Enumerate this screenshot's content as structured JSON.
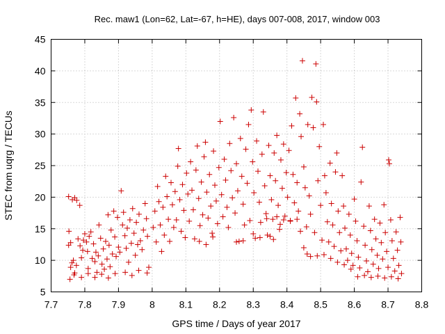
{
  "chart_data": {
    "type": "scatter",
    "title": "Rec. maw1 (Lon=62, Lat=-67, h=HE), days 007-008, 2017, window 003",
    "xlabel": "GPS time / Days of year 2017",
    "ylabel": "STEC from uqrg / TECUs",
    "xlim": [
      7.7,
      8.8
    ],
    "ylim": [
      5,
      45
    ],
    "x_ticks": [
      "7.7",
      "7.8",
      "7.9",
      "8",
      "8.1",
      "8.2",
      "8.3",
      "8.4",
      "8.5",
      "8.6",
      "8.7",
      "8.8"
    ],
    "y_ticks": [
      "5",
      "10",
      "15",
      "20",
      "25",
      "30",
      "35",
      "40",
      "45"
    ],
    "grid": true,
    "marker": "plus",
    "colors": {
      "points": "#cc0000"
    },
    "series": [
      {
        "points": [
          [
            7.752,
            20.1
          ],
          [
            7.763,
            19.6
          ],
          [
            7.77,
            19.9
          ],
          [
            7.776,
            19.5
          ],
          [
            7.785,
            18.7
          ],
          [
            7.753,
            14.6
          ],
          [
            7.752,
            12.4
          ],
          [
            7.758,
            12.8
          ],
          [
            7.762,
            9.6
          ],
          [
            7.758,
            8.9
          ],
          [
            7.766,
            10.0
          ],
          [
            7.77,
            8.0
          ],
          [
            7.775,
            9.2
          ],
          [
            7.78,
            13.4
          ],
          [
            7.786,
            12.3
          ],
          [
            7.79,
            10.4
          ],
          [
            7.794,
            11.6
          ],
          [
            7.796,
            13.2
          ],
          [
            7.8,
            14.2
          ],
          [
            7.805,
            12.9
          ],
          [
            7.808,
            11.4
          ],
          [
            7.81,
            8.7
          ],
          [
            7.813,
            13.8
          ],
          [
            7.818,
            14.5
          ],
          [
            7.822,
            10.3
          ],
          [
            7.826,
            12.6
          ],
          [
            7.83,
            9.8
          ],
          [
            7.833,
            11.3
          ],
          [
            7.836,
            8.1
          ],
          [
            7.84,
            10.7
          ],
          [
            7.842,
            15.6
          ],
          [
            7.847,
            13.5
          ],
          [
            7.851,
            9.4
          ],
          [
            7.855,
            11.8
          ],
          [
            7.858,
            8.6
          ],
          [
            7.862,
            13.0
          ],
          [
            7.866,
            10.2
          ],
          [
            7.869,
            17.2
          ],
          [
            7.872,
            12.4
          ],
          [
            7.875,
            9.0
          ],
          [
            7.878,
            14.8
          ],
          [
            7.882,
            11.0
          ],
          [
            7.886,
            17.8
          ],
          [
            7.889,
            13.7
          ],
          [
            7.893,
            10.6
          ],
          [
            7.897,
            16.8
          ],
          [
            7.9,
            12.1
          ],
          [
            7.904,
            11.3
          ],
          [
            7.908,
            21.0
          ],
          [
            7.912,
            15.6
          ],
          [
            7.915,
            17.6
          ],
          [
            7.919,
            13.9
          ],
          [
            7.923,
            11.9
          ],
          [
            7.926,
            15.1
          ],
          [
            7.93,
            9.7
          ],
          [
            7.934,
            16.4
          ],
          [
            7.938,
            12.7
          ],
          [
            7.942,
            18.2
          ],
          [
            7.946,
            14.3
          ],
          [
            7.95,
            10.8
          ],
          [
            7.953,
            16.0
          ],
          [
            7.957,
            12.5
          ],
          [
            7.961,
            17.3
          ],
          [
            7.965,
            13.1
          ],
          [
            7.97,
            11.7
          ],
          [
            7.974,
            14.8
          ],
          [
            7.979,
            19.0
          ],
          [
            7.983,
            16.6
          ],
          [
            7.986,
            13.8
          ],
          [
            7.99,
            8.9
          ],
          [
            7.756,
            7.0
          ],
          [
            7.768,
            7.7
          ],
          [
            7.79,
            7.3
          ],
          [
            7.81,
            7.9
          ],
          [
            7.83,
            7.3
          ],
          [
            7.85,
            7.8
          ],
          [
            7.87,
            7.2
          ],
          [
            7.89,
            7.9
          ],
          [
            7.92,
            8.1
          ],
          [
            7.94,
            7.6
          ],
          [
            7.96,
            8.4
          ],
          [
            7.985,
            8.0
          ],
          [
            8.003,
            15.2
          ],
          [
            8.008,
            17.8
          ],
          [
            8.012,
            12.9
          ],
          [
            8.016,
            21.7
          ],
          [
            8.02,
            19.3
          ],
          [
            8.024,
            15.6
          ],
          [
            8.028,
            11.4
          ],
          [
            8.032,
            18.4
          ],
          [
            8.036,
            14.0
          ],
          [
            8.04,
            23.3
          ],
          [
            8.044,
            20.1
          ],
          [
            8.048,
            16.5
          ],
          [
            8.052,
            13.0
          ],
          [
            8.056,
            22.3
          ],
          [
            8.06,
            18.8
          ],
          [
            8.064,
            15.2
          ],
          [
            8.068,
            20.9
          ],
          [
            8.072,
            16.4
          ],
          [
            8.076,
            24.9
          ],
          [
            8.078,
            27.7
          ],
          [
            8.082,
            19.6
          ],
          [
            8.086,
            14.6
          ],
          [
            8.09,
            22.0
          ],
          [
            8.094,
            17.9
          ],
          [
            8.098,
            13.6
          ],
          [
            8.102,
            23.8
          ],
          [
            8.106,
            20.5
          ],
          [
            8.11,
            16.2
          ],
          [
            8.114,
            25.6
          ],
          [
            8.118,
            21.1
          ],
          [
            8.122,
            18.0
          ],
          [
            8.126,
            13.4
          ],
          [
            8.13,
            24.3
          ],
          [
            8.134,
            28.1
          ],
          [
            8.138,
            19.8
          ],
          [
            8.142,
            15.5
          ],
          [
            8.146,
            22.4
          ],
          [
            8.15,
            17.2
          ],
          [
            8.154,
            26.4
          ],
          [
            8.158,
            28.7
          ],
          [
            8.162,
            20.8
          ],
          [
            8.166,
            16.7
          ],
          [
            8.17,
            23.6
          ],
          [
            8.174,
            18.6
          ],
          [
            8.178,
            14.3
          ],
          [
            8.182,
            27.3
          ],
          [
            8.186,
            21.9
          ],
          [
            8.19,
            19.4
          ],
          [
            8.194,
            15.8
          ],
          [
            8.198,
            24.7
          ],
          [
            8.202,
            32.0
          ],
          [
            8.206,
            20.4
          ],
          [
            8.21,
            16.9
          ],
          [
            8.214,
            26.0
          ],
          [
            8.218,
            22.7
          ],
          [
            8.222,
            18.4
          ],
          [
            8.226,
            15.2
          ],
          [
            8.23,
            28.5
          ],
          [
            8.234,
            24.2
          ],
          [
            8.238,
            19.9
          ],
          [
            8.242,
            32.6
          ],
          [
            8.246,
            17.5
          ],
          [
            8.25,
            25.3
          ],
          [
            8.254,
            21.0
          ],
          [
            8.258,
            13.0
          ],
          [
            8.262,
            29.3
          ],
          [
            8.266,
            23.3
          ],
          [
            8.27,
            18.9
          ],
          [
            8.274,
            15.6
          ],
          [
            8.278,
            27.6
          ],
          [
            8.282,
            22.2
          ],
          [
            8.286,
            31.5
          ],
          [
            8.29,
            16.3
          ],
          [
            8.294,
            33.8
          ],
          [
            8.298,
            25.6
          ],
          [
            8.302,
            20.7
          ],
          [
            8.306,
            13.5
          ],
          [
            8.31,
            28.9
          ],
          [
            8.314,
            24.1
          ],
          [
            8.318,
            19.2
          ],
          [
            8.322,
            16.0
          ],
          [
            8.326,
            26.8
          ],
          [
            8.33,
            33.5
          ],
          [
            8.334,
            21.8
          ],
          [
            8.338,
            17.4
          ],
          [
            8.342,
            14.0
          ],
          [
            8.346,
            28.2
          ],
          [
            8.35,
            23.4
          ],
          [
            8.354,
            19.6
          ],
          [
            8.358,
            16.5
          ],
          [
            8.362,
            27.0
          ],
          [
            8.366,
            22.6
          ],
          [
            8.37,
            29.8
          ],
          [
            8.374,
            18.7
          ],
          [
            8.378,
            14.9
          ],
          [
            8.382,
            25.9
          ],
          [
            8.386,
            21.4
          ],
          [
            8.39,
            28.4
          ],
          [
            8.394,
            17.0
          ],
          [
            8.398,
            23.9
          ],
          [
            8.402,
            20.0
          ],
          [
            8.406,
            27.4
          ],
          [
            8.41,
            16.3
          ],
          [
            8.414,
            31.3
          ],
          [
            8.418,
            23.6
          ],
          [
            8.422,
            19.1
          ],
          [
            8.426,
            35.7
          ],
          [
            8.43,
            22.3
          ],
          [
            8.434,
            17.8
          ],
          [
            8.438,
            33.2
          ],
          [
            8.442,
            29.6
          ],
          [
            8.446,
            41.6
          ],
          [
            8.45,
            24.8
          ],
          [
            8.454,
            21.5
          ],
          [
            8.458,
            15.3
          ],
          [
            8.462,
            31.5
          ],
          [
            8.466,
            20.2
          ],
          [
            8.47,
            17.3
          ],
          [
            8.474,
            35.8
          ],
          [
            8.478,
            31.0
          ],
          [
            8.482,
            14.4
          ],
          [
            8.486,
            41.1
          ],
          [
            8.488,
            35.1
          ],
          [
            8.492,
            22.6
          ],
          [
            8.496,
            28.0
          ],
          [
            8.5,
            18.7
          ],
          [
            8.504,
            13.2
          ],
          [
            8.508,
            31.5
          ],
          [
            8.512,
            23.4
          ],
          [
            8.516,
            20.7
          ],
          [
            8.52,
            16.1
          ],
          [
            8.524,
            12.9
          ],
          [
            8.528,
            25.4
          ],
          [
            8.532,
            19.0
          ],
          [
            8.536,
            15.6
          ],
          [
            8.54,
            12.2
          ],
          [
            8.544,
            24.0
          ],
          [
            8.548,
            27.0
          ],
          [
            8.552,
            17.8
          ],
          [
            8.556,
            14.4
          ],
          [
            8.56,
            11.5
          ],
          [
            8.564,
            23.4
          ],
          [
            8.568,
            18.6
          ],
          [
            8.572,
            15.1
          ],
          [
            8.576,
            11.8
          ],
          [
            8.58,
            10.0
          ],
          [
            8.584,
            17.3
          ],
          [
            8.588,
            14.0
          ],
          [
            8.592,
            11.1
          ],
          [
            8.596,
            9.2
          ],
          [
            8.6,
            19.7
          ],
          [
            8.604,
            16.2
          ],
          [
            8.608,
            13.1
          ],
          [
            8.612,
            10.5
          ],
          [
            8.616,
            8.8
          ],
          [
            8.62,
            22.4
          ],
          [
            8.624,
            27.9
          ],
          [
            8.628,
            15.4
          ],
          [
            8.632,
            12.4
          ],
          [
            8.636,
            9.9
          ],
          [
            8.64,
            8.2
          ],
          [
            8.644,
            18.6
          ],
          [
            8.648,
            14.7
          ],
          [
            8.652,
            11.7
          ],
          [
            8.656,
            9.4
          ],
          [
            8.66,
            16.5
          ],
          [
            8.664,
            13.4
          ],
          [
            8.668,
            10.8
          ],
          [
            8.672,
            8.7
          ],
          [
            8.676,
            15.9
          ],
          [
            8.68,
            12.8
          ],
          [
            8.684,
            10.2
          ],
          [
            8.688,
            18.8
          ],
          [
            8.692,
            14.4
          ],
          [
            8.696,
            11.4
          ],
          [
            8.7,
            8.9
          ],
          [
            8.702,
            25.9
          ],
          [
            8.704,
            25.3
          ],
          [
            8.708,
            16.4
          ],
          [
            8.712,
            13.1
          ],
          [
            8.716,
            10.3
          ],
          [
            8.72,
            8.3
          ],
          [
            8.724,
            14.5
          ],
          [
            8.728,
            11.6
          ],
          [
            8.732,
            9.2
          ],
          [
            8.736,
            16.8
          ],
          [
            8.738,
            12.9
          ],
          [
            8.74,
            7.9
          ],
          [
            8.34,
            16.6
          ],
          [
            8.37,
            16.9
          ],
          [
            8.39,
            16.4
          ],
          [
            8.41,
            16.2
          ],
          [
            8.43,
            16.5
          ],
          [
            8.25,
            12.9
          ],
          [
            8.27,
            13.1
          ],
          [
            8.3,
            14.2
          ],
          [
            8.32,
            13.6
          ],
          [
            8.35,
            13.8
          ],
          [
            8.36,
            13.3
          ],
          [
            8.38,
            15.7
          ],
          [
            8.14,
            13.0
          ],
          [
            8.16,
            12.5
          ],
          [
            8.18,
            13.7
          ],
          [
            8.44,
            14.6
          ],
          [
            8.45,
            12.0
          ],
          [
            8.46,
            11.0
          ],
          [
            8.47,
            10.6
          ],
          [
            8.49,
            10.7
          ],
          [
            8.51,
            10.9
          ],
          [
            8.53,
            10.3
          ],
          [
            8.55,
            9.7
          ],
          [
            8.57,
            9.3
          ],
          [
            8.59,
            8.6
          ],
          [
            8.61,
            7.4
          ],
          [
            8.63,
            7.6
          ],
          [
            8.65,
            7.3
          ],
          [
            8.67,
            7.5
          ],
          [
            8.69,
            7.2
          ],
          [
            8.71,
            7.4
          ],
          [
            8.73,
            7.1
          ]
        ]
      }
    ]
  }
}
